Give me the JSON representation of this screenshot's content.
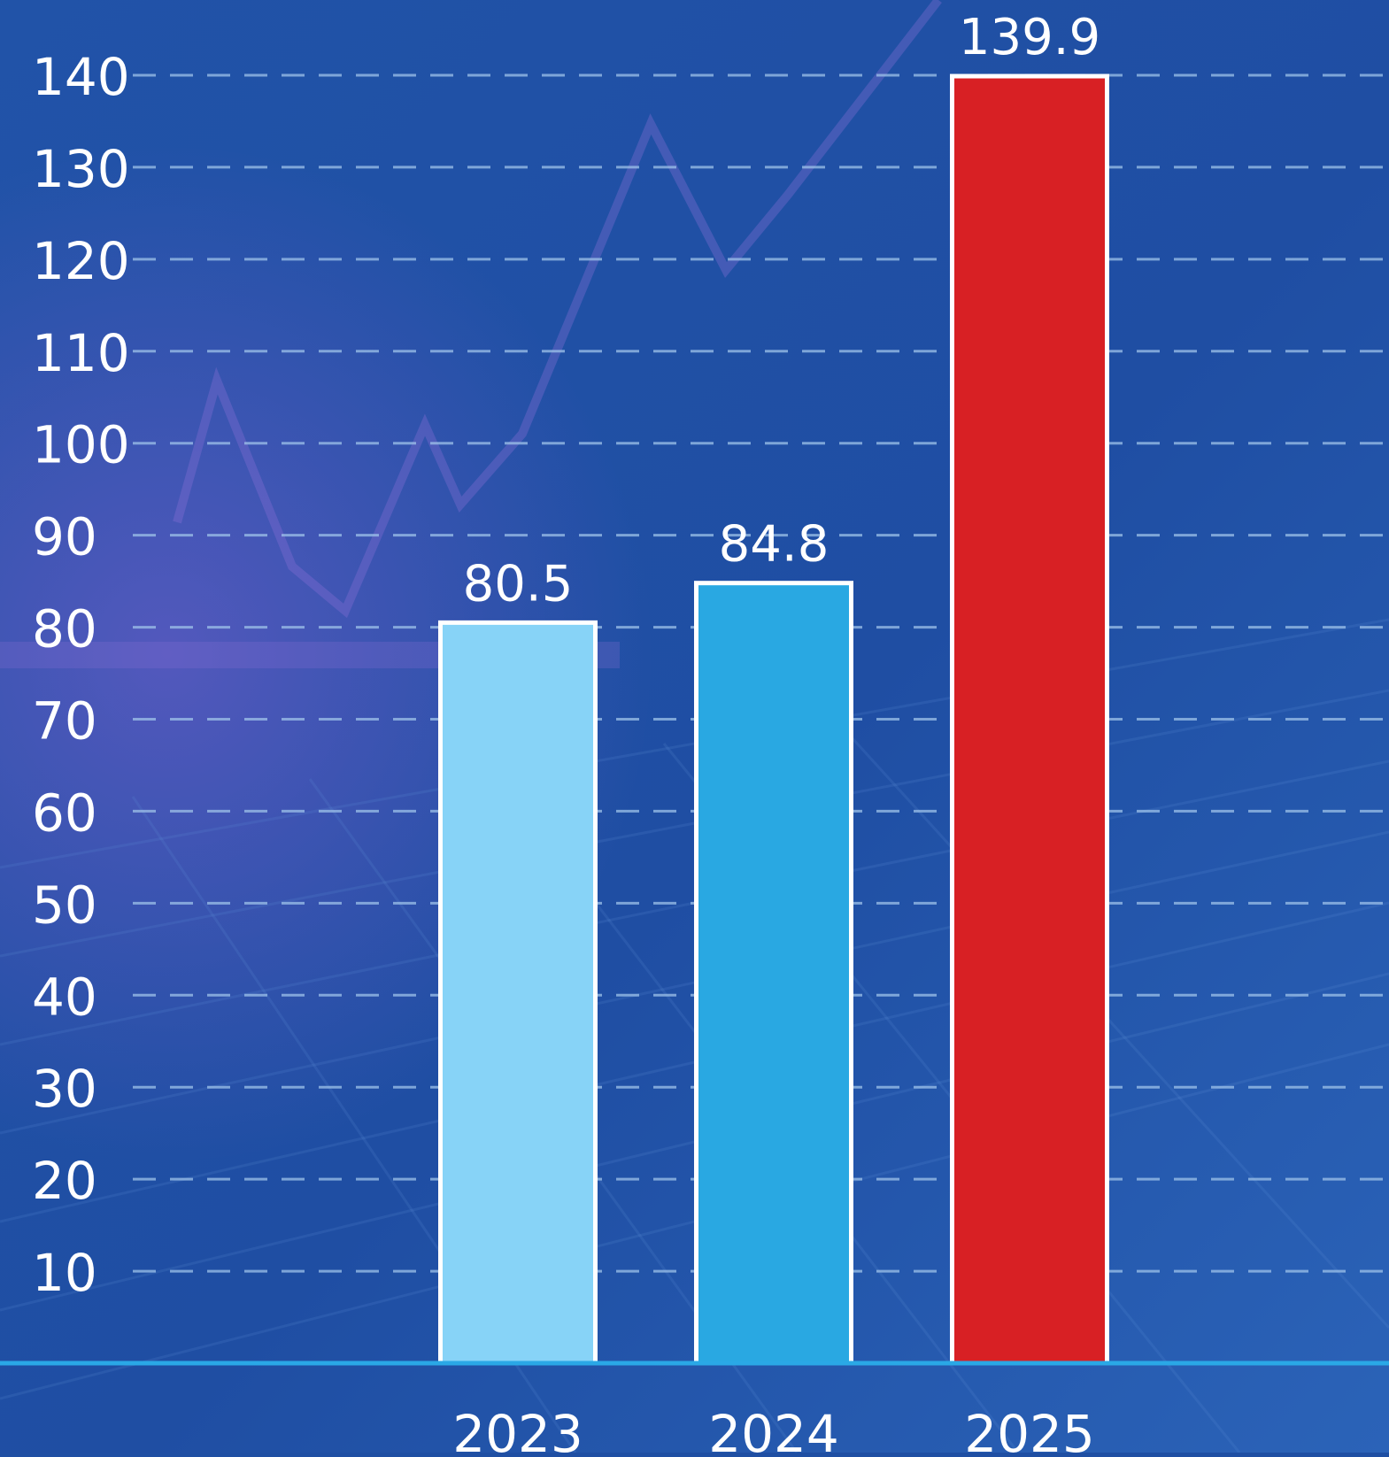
{
  "chart_data": {
    "type": "bar",
    "categories": [
      "2023",
      "2024",
      "2025"
    ],
    "values": [
      80.5,
      84.8,
      139.9
    ],
    "value_labels": [
      "80.5",
      "84.8",
      "139.9"
    ],
    "bar_colors": [
      "#87d3f7",
      "#29a8e2",
      "#d82024"
    ],
    "y_ticks": [
      10,
      20,
      30,
      40,
      50,
      60,
      70,
      80,
      90,
      100,
      110,
      120,
      130,
      140
    ],
    "ylim": [
      0,
      140
    ],
    "grid": true,
    "title": "",
    "xlabel": "",
    "ylabel": ""
  },
  "colors": {
    "background": "#1f4fa3",
    "grid": "#9fc3ea",
    "text": "#ffffff",
    "baseline": "#2aa8e6",
    "bar_border": "#ffffff"
  }
}
